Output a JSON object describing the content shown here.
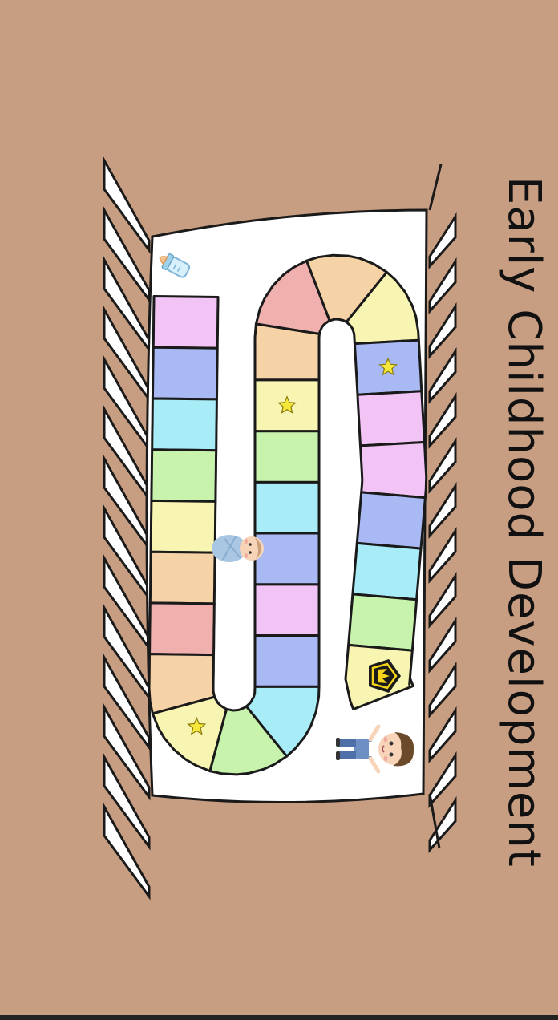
{
  "title": "Early Childhood Development",
  "colors": {
    "background": "#c89e82",
    "mattress": "#ffffff",
    "outline": "#1a1a1a"
  },
  "board": {
    "space_colors": [
      "#f2c4f5",
      "#a8b9f4",
      "#a7ecf6",
      "#c8f3ad",
      "#f8f5b2",
      "#f6d3a6",
      "#efb0ae",
      "#f6d3a6",
      "#f8f5b2",
      "#c8f3ad",
      "#a7ecf6",
      "#a8b9f4",
      "#f2c4f5",
      "#a8b9f4",
      "#a7ecf6",
      "#c8f3ad",
      "#f8f5b2",
      "#f6d3a6",
      "#efb0ae",
      "#f6d3a6",
      "#f8f5b2",
      "#a8b9f4",
      "#f2c4f5"
    ],
    "star_spaces": [
      8,
      16,
      21,
      27
    ],
    "finish_icon": "crown-icon"
  },
  "pieces": [
    {
      "name": "baby-bottle",
      "icon": "baby-bottle-icon"
    },
    {
      "name": "swaddled-baby",
      "icon": "swaddled-baby-icon"
    },
    {
      "name": "toddler-boy",
      "icon": "toddler-boy-icon"
    }
  ]
}
